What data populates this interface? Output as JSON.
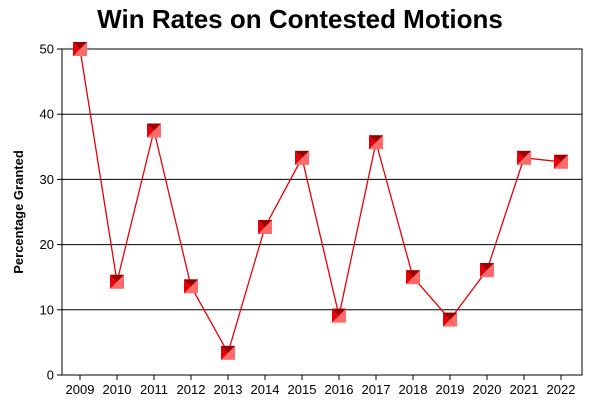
{
  "chart_data": {
    "type": "line",
    "title": "Win Rates on Contested Motions",
    "xlabel": "",
    "ylabel": "Percentage Granted",
    "ylim": [
      0,
      50
    ],
    "yticks": [
      "0",
      "10",
      "20",
      "30",
      "40",
      "50"
    ],
    "grid": "horizontal",
    "legend": "none",
    "categories": [
      "2009",
      "2010",
      "2011",
      "2012",
      "2013",
      "2014",
      "2015",
      "2016",
      "2017",
      "2018",
      "2019",
      "2020",
      "2021",
      "2022"
    ],
    "series": [
      {
        "values": [
          50.0,
          14.3,
          37.5,
          13.6,
          3.4,
          22.7,
          33.3,
          9.1,
          35.7,
          15.0,
          8.5,
          16.1,
          33.3,
          32.7
        ],
        "color": "#e8000b",
        "marker_color": "#ff6b6b",
        "marker_dark": "#990000"
      }
    ]
  }
}
